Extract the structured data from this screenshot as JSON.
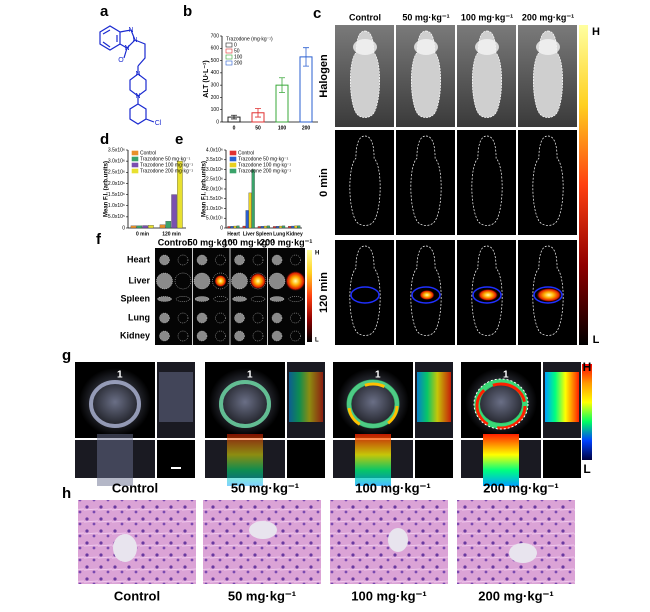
{
  "panel_labels": [
    "a",
    "b",
    "c",
    "d",
    "e",
    "f",
    "g",
    "h"
  ],
  "panel_a": {
    "atoms": [
      "N",
      "N",
      "O",
      "N",
      "N",
      "N",
      "Cl"
    ]
  },
  "chart_data": [
    {
      "type": "bar",
      "legend_title": "Trazodone (mg·kg⁻¹)",
      "categories": [
        "0",
        "50",
        "100",
        "200"
      ],
      "values": [
        40,
        75,
        300,
        530
      ],
      "errors": [
        15,
        35,
        60,
        75
      ],
      "colors": [
        "#222222",
        "#e03030",
        "#3aa83a",
        "#2a5fd0"
      ],
      "hollow": true,
      "y_label": "ALT (U·L⁻¹)",
      "ylim": [
        0,
        700
      ],
      "yticks": [
        0,
        100,
        200,
        300,
        400,
        500,
        600,
        700
      ],
      "legend": "upper left"
    },
    {
      "type": "bar",
      "categories": [
        "0 min",
        "120 min"
      ],
      "series": [
        {
          "name": "Control",
          "color": "#e8902a",
          "values": [
            100000,
            150000
          ]
        },
        {
          "name": "Trazodone 50 mg·kg⁻¹",
          "color": "#3aa36a",
          "values": [
            100000,
            300000
          ]
        },
        {
          "name": "Trazodone 100 mg·kg⁻¹",
          "color": "#7a4fb0",
          "values": [
            110000,
            1500000
          ]
        },
        {
          "name": "Trazodone 200 mg·kg⁻¹",
          "color": "#e8e030",
          "values": [
            120000,
            3000000
          ]
        }
      ],
      "y_label": "Mean F.I. (arb.units)",
      "ylim": [
        0,
        3500000
      ],
      "yticks": [
        0,
        {
          "value": 500000,
          "label": "5.0x10⁵"
        },
        {
          "value": 1000000,
          "label": "1.0x10⁶"
        },
        {
          "value": 1500000,
          "label": "1.5x10⁶"
        },
        {
          "value": 2000000,
          "label": "2.0x10⁶"
        },
        {
          "value": 2500000,
          "label": "2.5x10⁶"
        },
        {
          "value": 3000000,
          "label": "3.0x10⁶"
        },
        {
          "value": 3500000,
          "label": "3.5x10⁶"
        }
      ],
      "legend": "upper left"
    },
    {
      "type": "bar",
      "categories": [
        "Heart",
        "Liver",
        "Spleen",
        "Lung",
        "Kidney"
      ],
      "series": [
        {
          "name": "Control",
          "color": "#e03030",
          "values": [
            80000,
            100000,
            80000,
            80000,
            90000
          ]
        },
        {
          "name": "Trazodone 50 mg·kg⁻¹",
          "color": "#2a5fd0",
          "values": [
            90000,
            900000,
            90000,
            90000,
            100000
          ]
        },
        {
          "name": "Trazodone 100 mg·kg⁻¹",
          "color": "#e8d020",
          "values": [
            100000,
            1800000,
            100000,
            100000,
            110000
          ]
        },
        {
          "name": "Trazodone 200 mg·kg⁻¹",
          "color": "#3aa36a",
          "values": [
            110000,
            3000000,
            110000,
            110000,
            120000
          ]
        }
      ],
      "y_label": "Mean F.I. (arb.units)",
      "ylim": [
        0,
        4000000
      ],
      "yticks": [
        0,
        {
          "value": 500000,
          "label": "5.0x10⁵"
        },
        {
          "value": 1000000,
          "label": "1.0x10⁶"
        },
        {
          "value": 1500000,
          "label": "1.5x10⁶"
        },
        {
          "value": 2000000,
          "label": "2.0x10⁶"
        },
        {
          "value": 2500000,
          "label": "2.5x10⁶"
        },
        {
          "value": 3000000,
          "label": "3.0x10⁶"
        },
        {
          "value": 3500000,
          "label": "3.5x10⁶"
        },
        {
          "value": 4000000,
          "label": "4.0x10⁶"
        }
      ],
      "legend": "upper left"
    }
  ],
  "panel_c": {
    "columns": [
      "Control",
      "50 mg·kg⁻¹",
      "100 mg·kg⁻¹",
      "200 mg·kg⁻¹"
    ],
    "rows": [
      "Halogen",
      "0 min",
      "120 min"
    ],
    "scale": [
      "H",
      "L"
    ]
  },
  "panel_f": {
    "columns": [
      "Control",
      "50 mg·kg⁻¹",
      "100 mg·kg⁻¹",
      "200 mg·kg⁻¹"
    ],
    "rows": [
      "Heart",
      "Liver",
      "Spleen",
      "Lung",
      "Kidney"
    ],
    "scale": [
      "H",
      "L"
    ]
  },
  "panel_g": {
    "marker": "1",
    "captions": [
      "Control",
      "50 mg·kg⁻¹",
      "100 mg·kg⁻¹",
      "200 mg·kg⁻¹"
    ],
    "scale": [
      "H",
      "L"
    ]
  },
  "panel_h": {
    "captions": [
      "Control",
      "50 mg·kg⁻¹",
      "100 mg·kg⁻¹",
      "200 mg·kg⁻¹"
    ]
  }
}
